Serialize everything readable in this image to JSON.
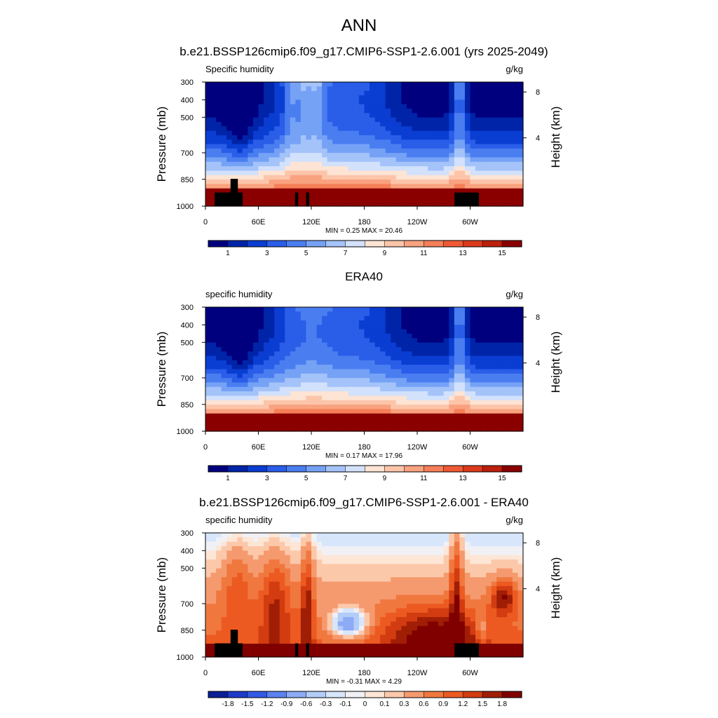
{
  "chart_data": {
    "type": "heatmap",
    "title": "ANN",
    "panels": [
      {
        "id": "model",
        "title": "b.e21.BSSP126cmip6.f09_g17.CMIP6-SSP1-2.6.001 (yrs 2025-2049)",
        "left_label": "Specific humidity",
        "units": "g/kg",
        "ylabel": "Pressure (mb)",
        "ylabel_right": "Height (km)",
        "yticks": [
          "300",
          "400",
          "500",
          "700",
          "850",
          "1000"
        ],
        "yticks_right": [
          "8",
          "4"
        ],
        "xticks": [
          "0",
          "60E",
          "120E",
          "180",
          "120W",
          "60W"
        ],
        "xlim": [
          0,
          355
        ],
        "ylim": [
          1000,
          300
        ],
        "stats": "MIN =   0.25  MAX =  20.46",
        "min": 0.25,
        "max": 20.46,
        "colorbar_ticks": [
          "1",
          "3",
          "5",
          "7",
          "9",
          "11",
          "13",
          "15"
        ],
        "colorbar_levels": [
          0,
          1,
          2,
          3,
          4,
          5,
          6,
          7,
          8,
          9,
          10,
          11,
          12,
          13,
          14,
          15,
          16
        ]
      },
      {
        "id": "obs",
        "title": "ERA40",
        "left_label": "specific humidity",
        "units": "g/kg",
        "ylabel": "Pressure (mb)",
        "ylabel_right": "Height (km)",
        "yticks": [
          "300",
          "400",
          "500",
          "700",
          "850",
          "1000"
        ],
        "yticks_right": [
          "8",
          "4"
        ],
        "xticks": [
          "0",
          "60E",
          "120E",
          "180",
          "120W",
          "60W"
        ],
        "xlim": [
          0,
          355
        ],
        "ylim": [
          1000,
          300
        ],
        "stats": "MIN =   0.17  MAX =  17.96",
        "min": 0.17,
        "max": 17.96,
        "colorbar_ticks": [
          "1",
          "3",
          "5",
          "7",
          "9",
          "11",
          "13",
          "15"
        ],
        "colorbar_levels": [
          0,
          1,
          2,
          3,
          4,
          5,
          6,
          7,
          8,
          9,
          10,
          11,
          12,
          13,
          14,
          15,
          16
        ]
      },
      {
        "id": "diff",
        "title": "b.e21.BSSP126cmip6.f09_g17.CMIP6-SSP1-2.6.001 - ERA40",
        "left_label": "specific humidity",
        "units": "g/kg",
        "ylabel": "Pressure (mb)",
        "ylabel_right": "Height (km)",
        "yticks": [
          "300",
          "400",
          "500",
          "700",
          "850",
          "1000"
        ],
        "yticks_right": [
          "8",
          "4"
        ],
        "xticks": [
          "0",
          "60E",
          "120E",
          "180",
          "120W",
          "60W"
        ],
        "xlim": [
          0,
          355
        ],
        "ylim": [
          1000,
          300
        ],
        "stats": "MIN =  -0.31  MAX =   4.29",
        "min": -0.31,
        "max": 4.29,
        "colorbar_ticks": [
          "-1.8",
          "-1.5",
          "-1.2",
          "-0.9",
          "-0.6",
          "-0.3",
          "-0.1",
          "0",
          "0.1",
          "0.3",
          "0.6",
          "0.9",
          "1.2",
          "1.5",
          "1.8"
        ],
        "colorbar_levels": [
          -1.8,
          -1.5,
          -1.2,
          -0.9,
          -0.6,
          -0.3,
          -0.1,
          0,
          0.1,
          0.3,
          0.6,
          0.9,
          1.2,
          1.5,
          1.8
        ]
      }
    ],
    "colors": {
      "abs_palette": [
        "#00007f",
        "#0024a8",
        "#0a3dd2",
        "#2a5de8",
        "#4a7ef0",
        "#76a2f6",
        "#a4c3f9",
        "#d2e1fc",
        "#fde4d4",
        "#fcc5aa",
        "#f9a27f",
        "#f57f58",
        "#ef5a34",
        "#dc3a1c",
        "#bc1f0c",
        "#8b0000"
      ],
      "diff_palette": [
        "#0a1e96",
        "#1e3cc8",
        "#325ae6",
        "#5a82f0",
        "#8caaf5",
        "#b4ccf8",
        "#d7e6fb",
        "#f0f0f5",
        "#fde6d6",
        "#fcc8aa",
        "#f59a6e",
        "#f0783f",
        "#ec5a22",
        "#d23c10",
        "#a01e05",
        "#800000"
      ],
      "terrain": "#000000"
    }
  }
}
